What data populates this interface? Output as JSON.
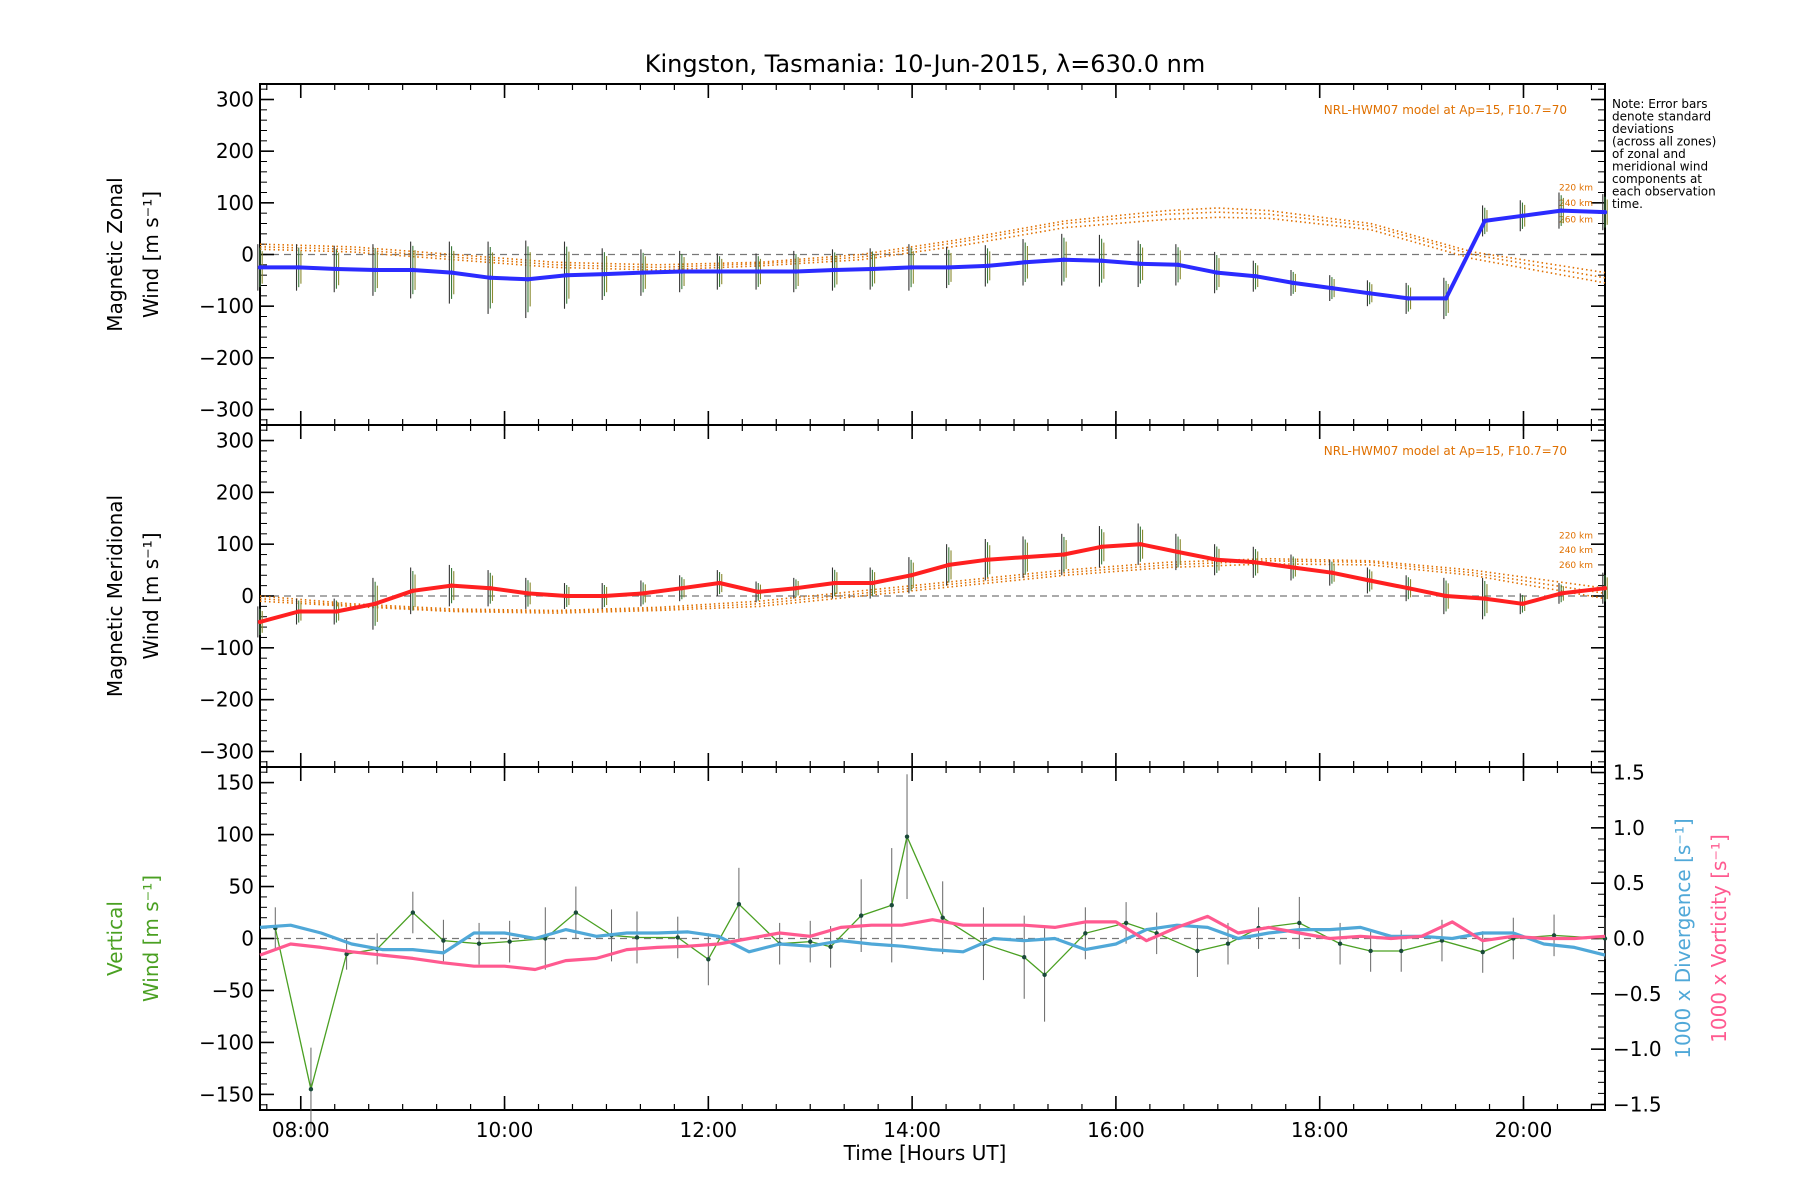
{
  "title": "Kingston, Tasmania: 10-Jun-2015, λ=630.0 nm",
  "note": [
    "Note: Error bars",
    "denote standard",
    "deviations",
    "(across all zones)",
    "of zonal and",
    "meridional wind",
    "components at",
    "each observation",
    "time."
  ],
  "xlabel": "Time [Hours UT]",
  "x_ticks": [
    "08:00",
    "10:00",
    "12:00",
    "14:00",
    "16:00",
    "18:00",
    "20:00"
  ],
  "colors": {
    "zonal": "#2b2bff",
    "meridional": "#ff2020",
    "model": "#e07000",
    "vertical": "#4aa022",
    "divergence": "#50a8d8",
    "vorticity": "#ff5a90",
    "errorbar": "#555555"
  },
  "chart_data": [
    {
      "type": "line",
      "panel": "zonal",
      "ylabel_lines": [
        "Magnetic Zonal",
        "Wind [m s⁻¹]"
      ],
      "xlim": [
        7.6,
        20.8
      ],
      "ylim": [
        -330,
        330
      ],
      "y_ticks": [
        300,
        200,
        100,
        0,
        -100,
        -200,
        -300
      ],
      "model_label": "NRL-HWM07 model at Ap=15, F10.7=70",
      "model_altitudes": [
        "220 km",
        "240 km",
        "260 km"
      ],
      "x": [
        7.6,
        7.98,
        8.35,
        8.73,
        9.1,
        9.48,
        9.86,
        10.23,
        10.61,
        10.98,
        11.36,
        11.74,
        12.11,
        12.49,
        12.86,
        13.24,
        13.61,
        13.99,
        14.36,
        14.74,
        15.11,
        15.49,
        15.86,
        16.24,
        16.61,
        16.99,
        17.37,
        17.74,
        18.12,
        18.49,
        18.87,
        19.24,
        19.62,
        19.99,
        20.37,
        20.8
      ],
      "series": [
        {
          "values": [
            -25,
            -25,
            -28,
            -30,
            -30,
            -35,
            -45,
            -48,
            -40,
            -38,
            -35,
            -33,
            -33,
            -33,
            -33,
            -30,
            -28,
            -25,
            -25,
            -22,
            -15,
            -10,
            -12,
            -18,
            -20,
            -35,
            -42,
            -55,
            -65,
            -75,
            -85,
            -85,
            65,
            75,
            85,
            82
          ]
        }
      ],
      "error_bars": [
        45,
        45,
        45,
        50,
        55,
        60,
        70,
        75,
        65,
        50,
        45,
        40,
        35,
        35,
        40,
        40,
        40,
        45,
        40,
        40,
        45,
        50,
        50,
        45,
        40,
        40,
        30,
        25,
        25,
        25,
        30,
        40,
        30,
        30,
        35,
        35
      ],
      "model_curves": {
        "x": [
          7.6,
          8.5,
          9.5,
          10.5,
          11.5,
          12.5,
          13.5,
          14.5,
          15.5,
          16.5,
          17.0,
          17.5,
          18.5,
          19.5,
          20.8
        ],
        "y": [
          [
            20,
            15,
            0,
            -15,
            -20,
            -15,
            0,
            30,
            65,
            85,
            90,
            85,
            60,
            5,
            -35
          ],
          [
            15,
            10,
            -5,
            -20,
            -25,
            -18,
            -5,
            25,
            60,
            78,
            82,
            78,
            55,
            0,
            -45
          ],
          [
            10,
            5,
            -10,
            -25,
            -30,
            -22,
            -10,
            18,
            52,
            68,
            72,
            70,
            48,
            -8,
            -55
          ]
        ]
      }
    },
    {
      "type": "line",
      "panel": "meridional",
      "ylabel_lines": [
        "Magnetic Meridional",
        "Wind [m s⁻¹]"
      ],
      "xlim": [
        7.6,
        20.8
      ],
      "ylim": [
        -330,
        330
      ],
      "y_ticks": [
        300,
        200,
        100,
        0,
        -100,
        -200,
        -300
      ],
      "model_label": "NRL-HWM07 model at Ap=15, F10.7=70",
      "model_altitudes": [
        "220 km",
        "240 km",
        "260 km"
      ],
      "x": [
        7.6,
        7.98,
        8.35,
        8.73,
        9.1,
        9.48,
        9.86,
        10.23,
        10.61,
        10.98,
        11.36,
        11.74,
        12.11,
        12.49,
        12.86,
        13.24,
        13.61,
        13.99,
        14.36,
        14.74,
        15.11,
        15.49,
        15.86,
        16.24,
        16.61,
        16.99,
        17.37,
        17.74,
        18.12,
        18.49,
        18.87,
        19.24,
        19.62,
        19.99,
        20.37,
        20.8
      ],
      "series": [
        {
          "values": [
            -50,
            -30,
            -30,
            -15,
            10,
            20,
            15,
            5,
            0,
            0,
            5,
            15,
            25,
            8,
            15,
            25,
            25,
            40,
            60,
            70,
            75,
            80,
            95,
            100,
            85,
            70,
            65,
            55,
            45,
            30,
            15,
            0,
            -5,
            -15,
            5,
            15
          ]
        }
      ],
      "error_bars": [
        30,
        25,
        25,
        50,
        45,
        40,
        35,
        30,
        25,
        25,
        25,
        25,
        25,
        20,
        20,
        30,
        30,
        35,
        40,
        40,
        40,
        40,
        40,
        40,
        35,
        30,
        30,
        25,
        25,
        25,
        25,
        35,
        40,
        20,
        20,
        30
      ],
      "model_curves": {
        "x": [
          7.6,
          8.5,
          9.5,
          10.5,
          11.5,
          12.5,
          13.5,
          14.5,
          15.5,
          16.5,
          17.5,
          18.5,
          19.5,
          20.8
        ],
        "y": [
          [
            0,
            -15,
            -25,
            -28,
            -22,
            -10,
            10,
            30,
            50,
            65,
            72,
            68,
            50,
            15
          ],
          [
            -5,
            -18,
            -28,
            -30,
            -25,
            -15,
            5,
            25,
            45,
            60,
            68,
            65,
            45,
            5
          ],
          [
            -10,
            -20,
            -30,
            -33,
            -28,
            -20,
            0,
            20,
            40,
            55,
            62,
            60,
            40,
            -5
          ]
        ]
      }
    },
    {
      "type": "line",
      "panel": "vertical",
      "ylabel_lines": [
        "Vertical",
        "Wind [m s⁻¹]"
      ],
      "y2label_div": "1000 x Divergence [s⁻¹]",
      "y2label_vort": "1000 x Vorticity [s⁻¹]",
      "xlim": [
        7.6,
        20.8
      ],
      "ylim": [
        -165,
        165
      ],
      "y_ticks": [
        150,
        100,
        50,
        0,
        -50,
        -100,
        -150
      ],
      "y2lim": [
        -1.55,
        1.55
      ],
      "y2_ticks": [
        "1.5",
        "1.0",
        "0.5",
        "0.0",
        "-0.5",
        "-1.0",
        "-1.5"
      ],
      "y2_tick_values": [
        1.5,
        1.0,
        0.5,
        0.0,
        -0.5,
        -1.0,
        -1.5
      ],
      "vertical_x": [
        7.75,
        8.1,
        8.45,
        8.75,
        9.1,
        9.4,
        9.75,
        10.05,
        10.4,
        10.7,
        11.05,
        11.3,
        11.7,
        12.0,
        12.3,
        12.7,
        13.0,
        13.2,
        13.5,
        13.8,
        13.95,
        14.3,
        14.7,
        15.1,
        15.3,
        15.7,
        16.1,
        16.4,
        16.8,
        17.1,
        17.4,
        17.8,
        18.2,
        18.5,
        18.8,
        19.2,
        19.6,
        19.9,
        20.3,
        20.8
      ],
      "vertical_values": [
        10,
        -145,
        -15,
        -10,
        25,
        -2,
        -5,
        -3,
        0,
        25,
        3,
        1,
        1,
        -20,
        33,
        -5,
        -3,
        -8,
        22,
        32,
        98,
        20,
        -5,
        -18,
        -35,
        5,
        15,
        5,
        -12,
        -5,
        10,
        15,
        -5,
        -12,
        -12,
        -2,
        -13,
        0,
        3,
        0
      ],
      "vertical_errors": [
        20,
        40,
        15,
        15,
        20,
        20,
        20,
        20,
        30,
        25,
        25,
        25,
        20,
        25,
        35,
        20,
        20,
        20,
        35,
        55,
        60,
        35,
        35,
        40,
        45,
        25,
        20,
        20,
        25,
        20,
        20,
        25,
        20,
        20,
        20,
        20,
        20,
        20,
        20,
        20
      ],
      "divergence_x": [
        7.6,
        7.9,
        8.2,
        8.5,
        8.8,
        9.1,
        9.4,
        9.7,
        10.0,
        10.3,
        10.6,
        10.9,
        11.2,
        11.5,
        11.8,
        12.1,
        12.4,
        12.7,
        13.0,
        13.3,
        13.6,
        13.9,
        14.2,
        14.5,
        14.8,
        15.1,
        15.4,
        15.7,
        16.0,
        16.3,
        16.6,
        16.9,
        17.2,
        17.5,
        17.8,
        18.1,
        18.4,
        18.7,
        19.0,
        19.3,
        19.6,
        19.9,
        20.2,
        20.5,
        20.8
      ],
      "divergence_values": [
        0.1,
        0.12,
        0.05,
        -0.05,
        -0.1,
        -0.1,
        -0.13,
        0.05,
        0.05,
        0.0,
        0.08,
        0.02,
        0.05,
        0.05,
        0.06,
        0.02,
        -0.12,
        -0.05,
        -0.07,
        -0.02,
        -0.05,
        -0.07,
        -0.1,
        -0.12,
        0.0,
        -0.02,
        0.0,
        -0.1,
        -0.05,
        0.08,
        0.12,
        0.1,
        0.0,
        0.05,
        0.08,
        0.08,
        0.1,
        0.02,
        0.02,
        0.0,
        0.05,
        0.05,
        -0.05,
        -0.08,
        -0.15
      ],
      "vorticity_x": [
        7.6,
        7.9,
        8.2,
        8.5,
        8.8,
        9.1,
        9.4,
        9.7,
        10.0,
        10.3,
        10.6,
        10.9,
        11.2,
        11.5,
        11.8,
        12.1,
        12.4,
        12.7,
        13.0,
        13.3,
        13.6,
        13.9,
        14.2,
        14.5,
        14.8,
        15.1,
        15.4,
        15.7,
        16.0,
        16.3,
        16.6,
        16.9,
        17.2,
        17.5,
        17.8,
        18.1,
        18.4,
        18.7,
        19.0,
        19.3,
        19.6,
        19.9,
        20.2,
        20.5,
        20.8
      ],
      "vorticity_values": [
        -0.15,
        -0.05,
        -0.08,
        -0.12,
        -0.15,
        -0.18,
        -0.22,
        -0.25,
        -0.25,
        -0.28,
        -0.2,
        -0.18,
        -0.1,
        -0.08,
        -0.07,
        -0.05,
        0.0,
        0.05,
        0.02,
        0.1,
        0.12,
        0.12,
        0.17,
        0.12,
        0.12,
        0.12,
        0.1,
        0.15,
        0.15,
        -0.02,
        0.1,
        0.2,
        0.05,
        0.1,
        0.05,
        0.0,
        0.02,
        0.0,
        0.02,
        0.15,
        -0.02,
        0.02,
        0.0,
        0.0,
        0.02
      ]
    }
  ]
}
